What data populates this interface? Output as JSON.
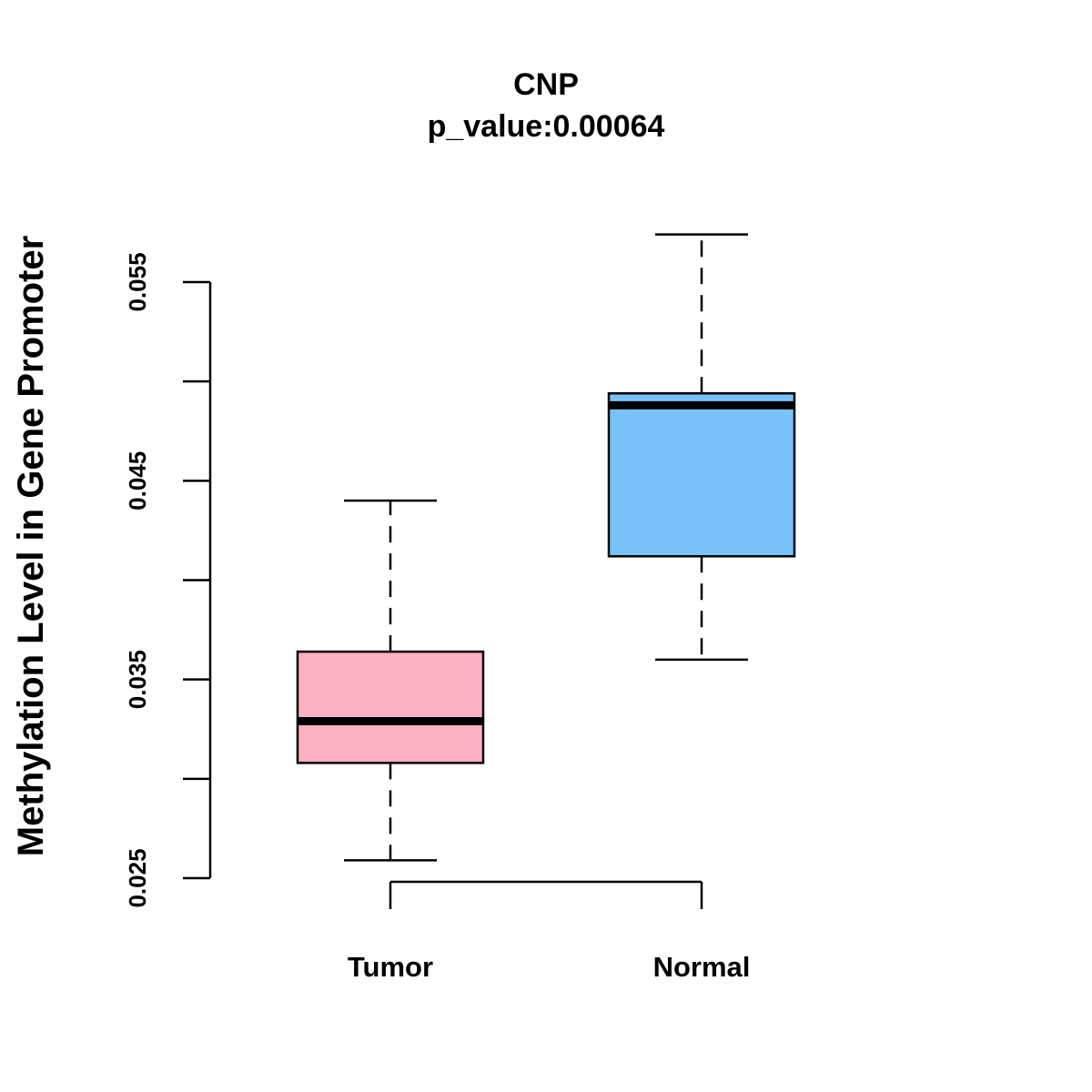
{
  "chart_data": {
    "type": "boxplot",
    "title": "CNP",
    "subtitle": "p_value:0.00064",
    "xlabel": "",
    "ylabel": "Methylation Level in Gene Promoter",
    "ylim": [
      0.025,
      0.055
    ],
    "y_ticks": [
      0.025,
      0.03,
      0.035,
      0.04,
      0.045,
      0.05,
      0.055
    ],
    "y_tick_labels": [
      "0.025",
      "",
      "0.035",
      "",
      "0.045",
      "",
      "0.055"
    ],
    "categories": [
      "Tumor",
      "Normal"
    ],
    "boxes": [
      {
        "name": "Tumor",
        "min": 0.0259,
        "q1": 0.0308,
        "median": 0.0329,
        "q3": 0.0364,
        "max": 0.044,
        "color": "#FDB0C0"
      },
      {
        "name": "Normal",
        "min": 0.036,
        "q1": 0.0412,
        "median": 0.0488,
        "q3": 0.0494,
        "max": 0.0574,
        "color": "#78C2F9"
      }
    ]
  }
}
